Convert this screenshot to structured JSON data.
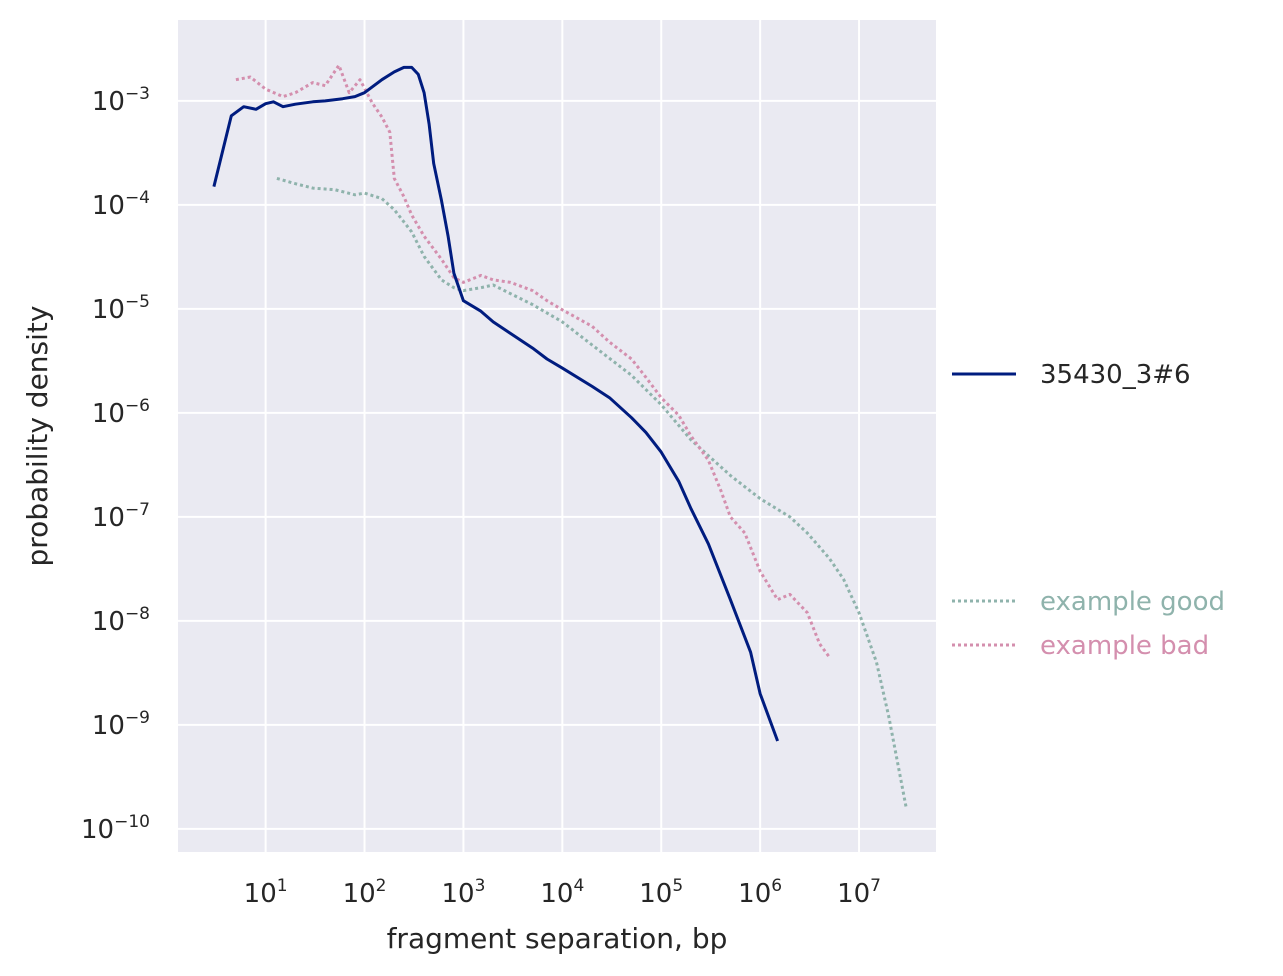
{
  "chart_data": {
    "type": "line",
    "title": "",
    "xlabel": "fragment separation, bp",
    "ylabel": "probability density",
    "xscale": "log",
    "yscale": "log",
    "xlim": [
      1.3,
      60000000
    ],
    "ylim": [
      6e-11,
      0.006
    ],
    "grid": true,
    "x_ticks": [
      {
        "base": "10",
        "exp": "1",
        "value": 10
      },
      {
        "base": "10",
        "exp": "2",
        "value": 100
      },
      {
        "base": "10",
        "exp": "3",
        "value": 1000
      },
      {
        "base": "10",
        "exp": "4",
        "value": 10000
      },
      {
        "base": "10",
        "exp": "5",
        "value": 100000
      },
      {
        "base": "10",
        "exp": "6",
        "value": 1000000
      },
      {
        "base": "10",
        "exp": "7",
        "value": 10000000
      }
    ],
    "y_ticks": [
      {
        "base": "10",
        "exp": "−3",
        "value": 0.001
      },
      {
        "base": "10",
        "exp": "−4",
        "value": 0.0001
      },
      {
        "base": "10",
        "exp": "−5",
        "value": 1e-05
      },
      {
        "base": "10",
        "exp": "−6",
        "value": 1e-06
      },
      {
        "base": "10",
        "exp": "−7",
        "value": 1e-07
      },
      {
        "base": "10",
        "exp": "−8",
        "value": 1e-08
      },
      {
        "base": "10",
        "exp": "−9",
        "value": 1e-09
      },
      {
        "base": "10",
        "exp": "−10",
        "value": 1e-10
      }
    ],
    "legend_placement": "right",
    "series": [
      {
        "name": "35430_3#6",
        "color": "#001c7f",
        "style": "solid",
        "legend_group": "top",
        "points": [
          [
            3,
            0.00015
          ],
          [
            4.5,
            0.00072
          ],
          [
            6,
            0.00088
          ],
          [
            8,
            0.00083
          ],
          [
            10,
            0.00094
          ],
          [
            12,
            0.00098
          ],
          [
            15,
            0.00088
          ],
          [
            20,
            0.00093
          ],
          [
            30,
            0.00098
          ],
          [
            40,
            0.001
          ],
          [
            60,
            0.00105
          ],
          [
            80,
            0.0011
          ],
          [
            100,
            0.0012
          ],
          [
            150,
            0.0016
          ],
          [
            200,
            0.0019
          ],
          [
            250,
            0.0021
          ],
          [
            300,
            0.0021
          ],
          [
            350,
            0.0018
          ],
          [
            400,
            0.0012
          ],
          [
            450,
            0.0006
          ],
          [
            500,
            0.00025
          ],
          [
            600,
            0.00011
          ],
          [
            700,
            5e-05
          ],
          [
            800,
            2.2e-05
          ],
          [
            1000,
            1.2e-05
          ],
          [
            1500,
            9.5e-06
          ],
          [
            2000,
            7.5e-06
          ],
          [
            3000,
            5.8e-06
          ],
          [
            5000,
            4.2e-06
          ],
          [
            7000,
            3.3e-06
          ],
          [
            10000,
            2.7e-06
          ],
          [
            20000,
            1.8e-06
          ],
          [
            30000,
            1.4e-06
          ],
          [
            50000,
            9e-07
          ],
          [
            70000,
            6.5e-07
          ],
          [
            100000,
            4.2e-07
          ],
          [
            150000,
            2.2e-07
          ],
          [
            200000,
            1.2e-07
          ],
          [
            300000,
            5.5e-08
          ],
          [
            500000,
            1.6e-08
          ],
          [
            800000,
            5e-09
          ],
          [
            1000000,
            2e-09
          ],
          [
            1500000,
            7e-10
          ]
        ]
      },
      {
        "name": "example good",
        "color": "#8fb3ac",
        "style": "dotted",
        "legend_group": "bottom",
        "points": [
          [
            13,
            0.00018
          ],
          [
            20,
            0.00016
          ],
          [
            30,
            0.000145
          ],
          [
            50,
            0.00014
          ],
          [
            80,
            0.000125
          ],
          [
            100,
            0.00013
          ],
          [
            150,
            0.000115
          ],
          [
            200,
            9e-05
          ],
          [
            300,
            5.5e-05
          ],
          [
            400,
            3.2e-05
          ],
          [
            600,
            1.9e-05
          ],
          [
            800,
            1.6e-05
          ],
          [
            1000,
            1.5e-05
          ],
          [
            1500,
            1.6e-05
          ],
          [
            2000,
            1.7e-05
          ],
          [
            3000,
            1.4e-05
          ],
          [
            5000,
            1.1e-05
          ],
          [
            10000,
            7.5e-06
          ],
          [
            20000,
            4.5e-06
          ],
          [
            50000,
            2.3e-06
          ],
          [
            100000,
            1.2e-06
          ],
          [
            200000,
            5.5e-07
          ],
          [
            500000,
            2.5e-07
          ],
          [
            1000000,
            1.5e-07
          ],
          [
            2000000,
            1e-07
          ],
          [
            3000000,
            7e-08
          ],
          [
            5000000,
            4e-08
          ],
          [
            7000000,
            2.5e-08
          ],
          [
            10000000,
            1.2e-08
          ],
          [
            15000000,
            4e-09
          ],
          [
            20000000,
            1.2e-09
          ],
          [
            30000000,
            1.6e-10
          ]
        ]
      },
      {
        "name": "example bad",
        "color": "#d48fae",
        "style": "dotted",
        "legend_group": "bottom",
        "points": [
          [
            5,
            0.0016
          ],
          [
            7,
            0.0017
          ],
          [
            10,
            0.0013
          ],
          [
            15,
            0.0011
          ],
          [
            20,
            0.0012
          ],
          [
            30,
            0.0015
          ],
          [
            40,
            0.0014
          ],
          [
            55,
            0.0022
          ],
          [
            70,
            0.0012
          ],
          [
            90,
            0.0016
          ],
          [
            120,
            0.00095
          ],
          [
            150,
            0.0007
          ],
          [
            180,
            0.0005
          ],
          [
            200,
            0.00018
          ],
          [
            250,
            0.00012
          ],
          [
            300,
            8e-05
          ],
          [
            400,
            5e-05
          ],
          [
            600,
            3e-05
          ],
          [
            800,
            2e-05
          ],
          [
            1000,
            1.8e-05
          ],
          [
            1500,
            2.1e-05
          ],
          [
            2000,
            1.9e-05
          ],
          [
            3000,
            1.8e-05
          ],
          [
            5000,
            1.5e-05
          ],
          [
            7000,
            1.2e-05
          ],
          [
            10000,
            9.8e-06
          ],
          [
            20000,
            6.8e-06
          ],
          [
            30000,
            4.8e-06
          ],
          [
            50000,
            3.3e-06
          ],
          [
            70000,
            2.2e-06
          ],
          [
            100000,
            1.4e-06
          ],
          [
            150000,
            9.5e-07
          ],
          [
            200000,
            6e-07
          ],
          [
            300000,
            3.5e-07
          ],
          [
            400000,
            1.8e-07
          ],
          [
            500000,
            1e-07
          ],
          [
            700000,
            7e-08
          ],
          [
            1000000,
            3e-08
          ],
          [
            1500000,
            1.6e-08
          ],
          [
            2000000,
            1.8e-08
          ],
          [
            3000000,
            1.2e-08
          ],
          [
            4000000,
            6e-09
          ],
          [
            5000000,
            4.5e-09
          ]
        ]
      }
    ]
  }
}
